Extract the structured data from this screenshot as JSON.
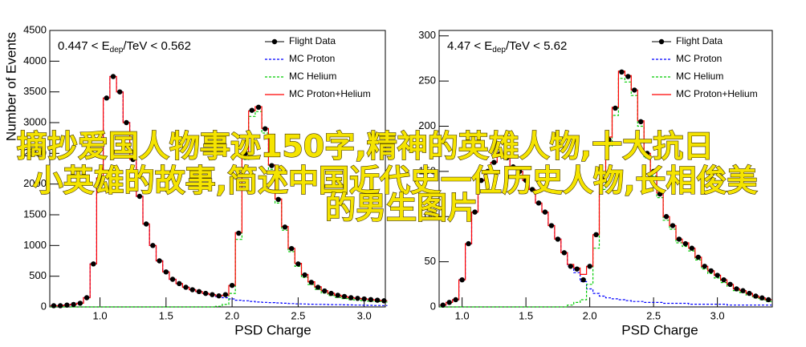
{
  "chart_data": [
    {
      "type": "histogram",
      "annotation": {
        "text": "0.447 < E",
        "sub": "dep",
        "tail": "/TeV < 0.562"
      },
      "x_label": "PSD Charge",
      "y_label": "Number of Events",
      "xlim": [
        0.62,
        3.16
      ],
      "ylim": [
        0,
        4500
      ],
      "xticks": [
        {
          "value": 1,
          "label": "1.0"
        },
        {
          "value": 1.5,
          "label": "1.5"
        },
        {
          "value": 2,
          "label": "2.0"
        },
        {
          "value": 2.5,
          "label": "2.5"
        },
        {
          "value": 3,
          "label": "3.0"
        }
      ],
      "yticks": [
        0,
        500,
        1000,
        1500,
        2000,
        2500,
        3000,
        3500,
        4000,
        4500
      ],
      "legend": "top-right",
      "x": [
        0.65,
        0.7,
        0.75,
        0.8,
        0.85,
        0.9,
        0.95,
        1.0,
        1.05,
        1.1,
        1.15,
        1.2,
        1.25,
        1.3,
        1.35,
        1.4,
        1.45,
        1.5,
        1.55,
        1.6,
        1.65,
        1.7,
        1.75,
        1.8,
        1.85,
        1.9,
        1.95,
        2.0,
        2.05,
        2.1,
        2.15,
        2.2,
        2.25,
        2.3,
        2.35,
        2.4,
        2.45,
        2.5,
        2.55,
        2.6,
        2.65,
        2.7,
        2.75,
        2.8,
        2.85,
        2.9,
        2.95,
        3.0,
        3.05,
        3.1,
        3.15
      ],
      "series": [
        {
          "name": "Flight Data",
          "color": "#000000",
          "style": "points",
          "values": [
            20,
            20,
            30,
            40,
            60,
            150,
            700,
            2100,
            3400,
            3750,
            3500,
            3000,
            2400,
            1800,
            1350,
            1000,
            750,
            570,
            450,
            380,
            320,
            280,
            250,
            220,
            200,
            180,
            200,
            350,
            1200,
            2500,
            3200,
            3250,
            2900,
            2300,
            1750,
            1300,
            950,
            700,
            520,
            400,
            320,
            260,
            220,
            190,
            170,
            150,
            140,
            130,
            120,
            110,
            100
          ]
        },
        {
          "name": "MC Proton",
          "color": "#0000ff",
          "style": "dashed",
          "values": [
            20,
            20,
            30,
            40,
            60,
            150,
            700,
            2100,
            3400,
            3750,
            3500,
            3000,
            2400,
            1800,
            1350,
            1000,
            750,
            570,
            450,
            380,
            320,
            280,
            250,
            220,
            200,
            170,
            150,
            130,
            110,
            100,
            90,
            80,
            75,
            70,
            65,
            60,
            55,
            50,
            48,
            45,
            42,
            40,
            38,
            36,
            34,
            32,
            30,
            28,
            26,
            24,
            22
          ]
        },
        {
          "name": "MC Helium",
          "color": "#00cc00",
          "style": "dashed",
          "values": [
            0,
            0,
            0,
            0,
            0,
            0,
            0,
            0,
            0,
            0,
            0,
            0,
            0,
            0,
            0,
            0,
            0,
            0,
            0,
            0,
            0,
            0,
            0,
            0,
            0,
            10,
            40,
            220,
            1100,
            2400,
            3100,
            3180,
            2830,
            2240,
            1690,
            1250,
            900,
            660,
            480,
            365,
            285,
            225,
            185,
            155,
            135,
            118,
            110,
            102,
            94,
            86,
            78
          ]
        },
        {
          "name": "MC Proton+Helium",
          "color": "#ff0000",
          "style": "solid",
          "values": [
            20,
            20,
            30,
            40,
            60,
            150,
            700,
            2100,
            3400,
            3750,
            3500,
            3000,
            2400,
            1800,
            1350,
            1000,
            750,
            570,
            450,
            380,
            320,
            280,
            250,
            220,
            200,
            180,
            190,
            350,
            1210,
            2500,
            3190,
            3260,
            2905,
            2310,
            1755,
            1310,
            955,
            710,
            528,
            410,
            327,
            265,
            223,
            191,
            169,
            150,
            140,
            130,
            120,
            110,
            100
          ]
        }
      ]
    },
    {
      "type": "histogram",
      "annotation": {
        "text": "4.47 < E",
        "sub": "dep",
        "tail": "/TeV < 5.62"
      },
      "x_label": "PSD Charge",
      "y_label": "",
      "xlim": [
        0.82,
        3.43
      ],
      "ylim": [
        0,
        306
      ],
      "xticks": [
        {
          "value": 1,
          "label": "1.0"
        },
        {
          "value": 1.5,
          "label": "1.5"
        },
        {
          "value": 2,
          "label": "2.0"
        },
        {
          "value": 2.5,
          "label": "2.5"
        },
        {
          "value": 3,
          "label": "3.0"
        }
      ],
      "yticks": [
        0,
        50,
        100,
        150,
        200,
        250,
        300
      ],
      "legend": "top-right",
      "x": [
        0.85,
        0.9,
        0.95,
        1.0,
        1.05,
        1.1,
        1.15,
        1.2,
        1.25,
        1.3,
        1.35,
        1.4,
        1.45,
        1.5,
        1.55,
        1.6,
        1.65,
        1.7,
        1.75,
        1.8,
        1.85,
        1.9,
        1.95,
        2.0,
        2.05,
        2.1,
        2.15,
        2.2,
        2.25,
        2.3,
        2.35,
        2.4,
        2.45,
        2.5,
        2.55,
        2.6,
        2.65,
        2.7,
        2.75,
        2.8,
        2.85,
        2.9,
        2.95,
        3.0,
        3.05,
        3.1,
        3.15,
        3.2,
        3.25,
        3.3,
        3.35,
        3.4
      ],
      "series": [
        {
          "name": "Flight Data",
          "color": "#000000",
          "style": "points",
          "values": [
            2,
            5,
            8,
            30,
            70,
            105,
            140,
            150,
            160,
            170,
            165,
            155,
            150,
            140,
            130,
            115,
            105,
            90,
            75,
            60,
            45,
            42,
            30,
            45,
            80,
            140,
            185,
            220,
            260,
            255,
            240,
            205,
            170,
            150,
            125,
            100,
            90,
            75,
            70,
            65,
            55,
            45,
            40,
            35,
            30,
            25,
            20,
            18,
            15,
            12,
            10,
            8
          ]
        },
        {
          "name": "MC Proton",
          "color": "#0000ff",
          "style": "dashed",
          "values": [
            2,
            5,
            8,
            30,
            70,
            105,
            140,
            150,
            160,
            170,
            165,
            155,
            150,
            140,
            130,
            115,
            105,
            90,
            75,
            60,
            45,
            38,
            28,
            20,
            15,
            12,
            10,
            9,
            8,
            7,
            6,
            6,
            5,
            5,
            5,
            4,
            4,
            4,
            4,
            3,
            3,
            3,
            3,
            3,
            3,
            2,
            2,
            2,
            2,
            2,
            2,
            2
          ]
        },
        {
          "name": "MC Helium",
          "color": "#00cc00",
          "style": "dashed",
          "values": [
            0,
            0,
            0,
            0,
            0,
            0,
            0,
            0,
            0,
            0,
            0,
            0,
            0,
            0,
            0,
            0,
            0,
            0,
            0,
            0,
            2,
            5,
            8,
            25,
            65,
            130,
            178,
            212,
            253,
            249,
            234,
            200,
            165,
            145,
            121,
            96,
            86,
            71,
            67,
            62,
            52,
            42,
            37,
            32,
            27,
            23,
            18,
            16,
            13,
            10,
            8,
            6
          ]
        },
        {
          "name": "MC Proton+Helium",
          "color": "#ff0000",
          "style": "solid",
          "values": [
            2,
            5,
            8,
            30,
            70,
            105,
            140,
            150,
            160,
            170,
            165,
            155,
            150,
            140,
            130,
            115,
            105,
            90,
            75,
            60,
            47,
            43,
            36,
            45,
            80,
            142,
            188,
            221,
            261,
            256,
            240,
            206,
            170,
            150,
            126,
            100,
            90,
            75,
            71,
            65,
            55,
            45,
            40,
            35,
            30,
            25,
            20,
            18,
            15,
            12,
            10,
            8
          ]
        }
      ]
    }
  ],
  "overlay_text": [
    "摘抄爱国人物事迹150字,精神的英雄人物,十大抗日",
    "小英雄的故事,简述中国近代史一位历史人物,长相俊美",
    "的男生图片"
  ]
}
